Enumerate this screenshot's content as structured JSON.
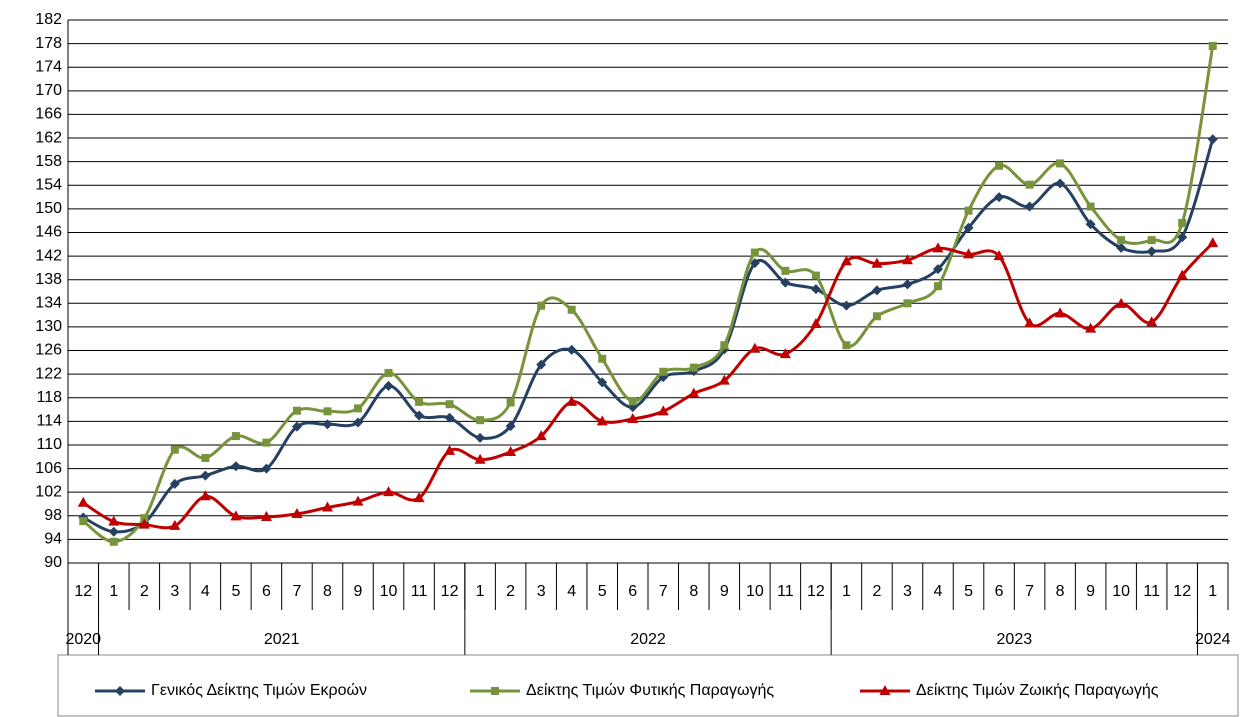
{
  "chart_data": {
    "type": "line",
    "categories": [
      "12",
      "1",
      "2",
      "3",
      "4",
      "5",
      "6",
      "7",
      "8",
      "9",
      "10",
      "11",
      "12",
      "1",
      "2",
      "3",
      "4",
      "5",
      "6",
      "7",
      "8",
      "9",
      "10",
      "11",
      "12",
      "1",
      "2",
      "3",
      "4",
      "5",
      "6",
      "7",
      "8",
      "9",
      "10",
      "11",
      "12",
      "1"
    ],
    "year_groups": [
      {
        "label": "2020",
        "span": 1
      },
      {
        "label": "2021",
        "span": 12
      },
      {
        "label": "2022",
        "span": 12
      },
      {
        "label": "2023",
        "span": 12
      },
      {
        "label": "2024",
        "span": 1
      }
    ],
    "series": [
      {
        "name": "Γενικός Δείκτης Τιμών Εκροών",
        "color": "#254061",
        "marker": "diamond",
        "values": [
          97.7,
          95.3,
          96.8,
          103.4,
          104.8,
          106.4,
          106.0,
          113.1,
          113.5,
          113.8,
          120.0,
          115.0,
          114.6,
          111.2,
          113.2,
          123.6,
          126.1,
          120.6,
          116.4,
          121.5,
          122.5,
          126.2,
          140.8,
          137.5,
          136.4,
          133.6,
          136.2,
          137.2,
          139.8,
          146.8,
          152.0,
          150.4,
          154.3,
          147.4,
          143.4,
          142.8,
          145.2,
          161.8
        ]
      },
      {
        "name": "Δείκτης Τιμών Φυτικής Παραγωγής",
        "color": "#77933c",
        "marker": "square",
        "values": [
          97.1,
          93.6,
          97.6,
          109.2,
          107.8,
          111.5,
          110.4,
          115.8,
          115.7,
          116.2,
          122.2,
          117.3,
          116.9,
          114.2,
          117.2,
          133.6,
          132.9,
          124.6,
          117.4,
          122.4,
          123.1,
          126.9,
          142.6,
          139.5,
          138.7,
          126.9,
          131.8,
          134.0,
          136.9,
          149.7,
          157.3,
          154.1,
          157.7,
          150.4,
          144.7,
          144.7,
          147.6,
          177.6
        ]
      },
      {
        "name": "Δείκτης Τιμών Ζωικής Παραγωγής",
        "color": "#c00000",
        "marker": "triangle",
        "values": [
          100.2,
          97.0,
          96.5,
          96.3,
          101.3,
          97.9,
          97.8,
          98.3,
          99.4,
          100.4,
          102.0,
          101.0,
          109.0,
          107.5,
          108.8,
          111.5,
          117.3,
          114.0,
          114.4,
          115.7,
          118.7,
          120.9,
          126.3,
          125.4,
          130.5,
          141.1,
          140.7,
          141.3,
          143.3,
          142.3,
          142.0,
          130.6,
          132.3,
          129.7,
          133.9,
          130.8,
          138.7,
          144.2
        ]
      }
    ],
    "ylim": [
      90,
      182
    ],
    "yticks": [
      90,
      94,
      98,
      102,
      106,
      110,
      114,
      118,
      122,
      126,
      130,
      134,
      138,
      142,
      146,
      150,
      154,
      158,
      162,
      166,
      170,
      174,
      178,
      182
    ],
    "grid": true,
    "legend": "bottom"
  }
}
